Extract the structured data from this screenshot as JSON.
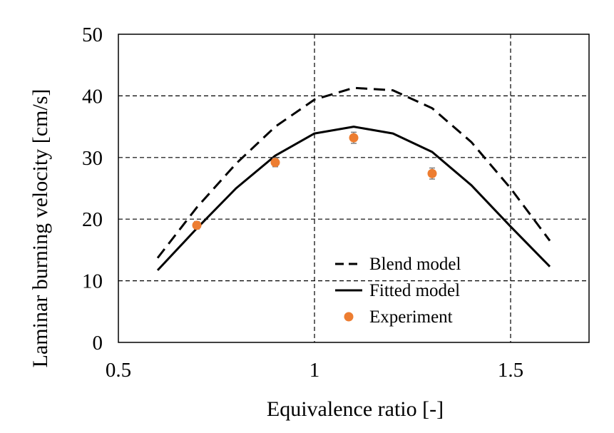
{
  "chart_data": {
    "type": "line",
    "title": "",
    "xlabel": "Equivalence ratio [-]",
    "ylabel": "Laminar burning velocity [cm/s]",
    "xlim": [
      0.5,
      1.7
    ],
    "ylim": [
      0,
      50
    ],
    "xticks": [
      0.5,
      1,
      1.5
    ],
    "xtick_labels": [
      "0.5",
      "1",
      "1.5"
    ],
    "yticks": [
      0,
      10,
      20,
      30,
      40,
      50
    ],
    "ytick_labels": [
      "0",
      "10",
      "20",
      "30",
      "40",
      "50"
    ],
    "grid": true,
    "legend_position": "bottom-right",
    "series": [
      {
        "name": "Blend model",
        "style": "dashed",
        "color": "#000000",
        "x": [
          0.6,
          0.7,
          0.8,
          0.9,
          1.0,
          1.1,
          1.2,
          1.3,
          1.4,
          1.5,
          1.6
        ],
        "y": [
          13.7,
          21.9,
          29.0,
          35.0,
          39.4,
          41.3,
          40.9,
          38.0,
          32.5,
          25.0,
          16.5
        ]
      },
      {
        "name": "Fitted model",
        "style": "solid",
        "color": "#000000",
        "x": [
          0.6,
          0.7,
          0.8,
          0.9,
          1.0,
          1.1,
          1.2,
          1.3,
          1.4,
          1.5,
          1.6
        ],
        "y": [
          11.7,
          18.5,
          25.0,
          30.3,
          33.9,
          35.0,
          33.9,
          30.9,
          25.5,
          18.8,
          12.3
        ]
      },
      {
        "name": "Experiment",
        "style": "marker",
        "color": "#ED7D31",
        "x": [
          0.7,
          0.9,
          1.1,
          1.3
        ],
        "y": [
          19.0,
          29.2,
          33.2,
          27.4
        ],
        "error": [
          0.6,
          0.7,
          0.9,
          0.9
        ]
      }
    ]
  }
}
